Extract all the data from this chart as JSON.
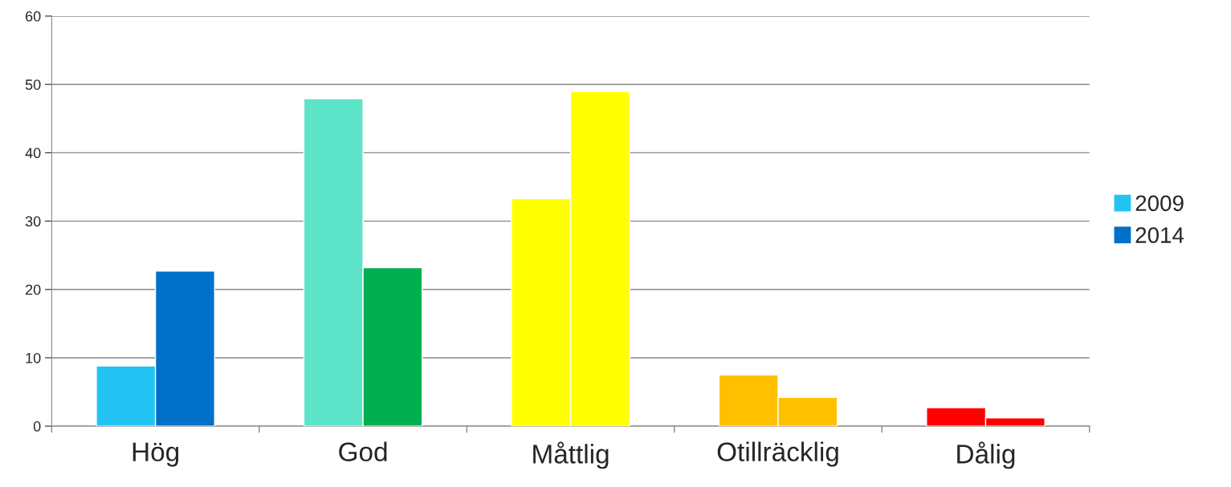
{
  "chart_data": {
    "type": "bar",
    "categories": [
      "Hög",
      "God",
      "Måttlig",
      "Otillräcklig",
      "Dålig"
    ],
    "series": [
      {
        "name": "2009",
        "color": "#22c3f3",
        "colors": [
          "#22c3f3",
          "#5ce3c8",
          "#ffff00",
          "#ffc000",
          "#ff0000"
        ],
        "values": [
          8.8,
          47.9,
          33.3,
          7.5,
          2.7
        ]
      },
      {
        "name": "2014",
        "color": "#0070c8",
        "colors": [
          "#0070c8",
          "#00b050",
          "#ffff00",
          "#ffc000",
          "#ff0000"
        ],
        "values": [
          22.7,
          23.2,
          49.0,
          4.2,
          1.2
        ]
      }
    ],
    "ylim": [
      0,
      60
    ],
    "yticks": [
      0,
      10,
      20,
      30,
      40,
      50,
      60
    ],
    "grid": "y",
    "legend": "right"
  }
}
